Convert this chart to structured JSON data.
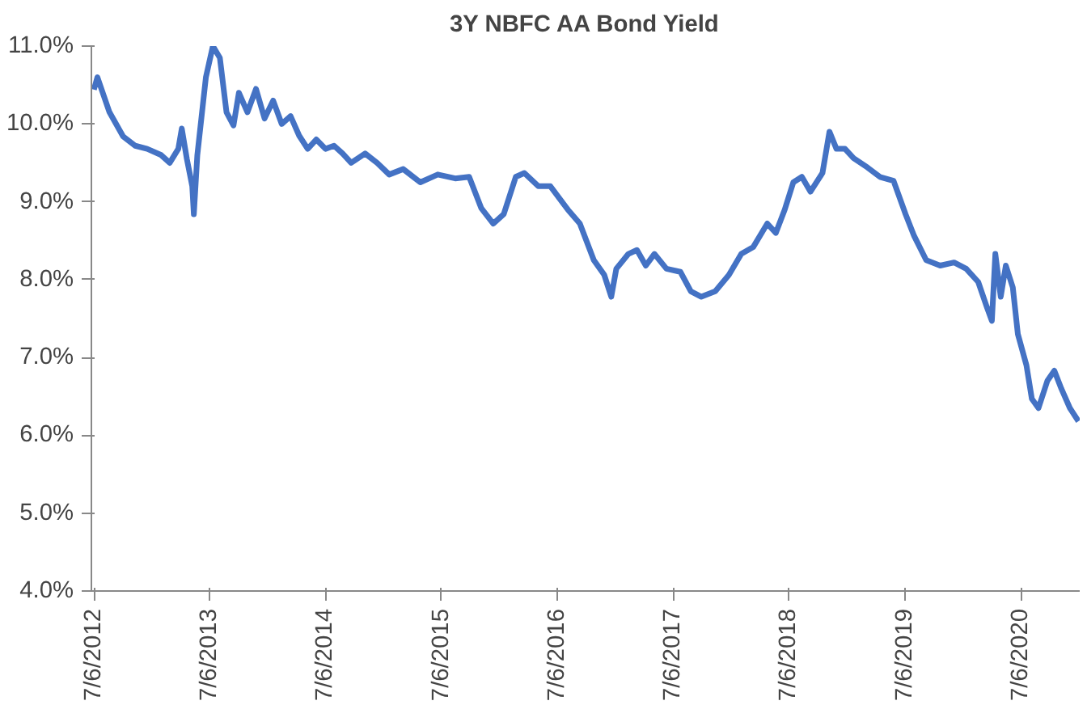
{
  "chart_data": {
    "type": "line",
    "title": "3Y NBFC AA Bond Yield",
    "x": [
      "2012-07-06",
      "2012-07-17",
      "2012-08-24",
      "2012-10-06",
      "2012-11-13",
      "2012-12-21",
      "2013-02-03",
      "2013-03-02",
      "2013-03-29",
      "2013-04-09",
      "2013-04-25",
      "2013-05-12",
      "2013-05-17",
      "2013-05-28",
      "2013-06-24",
      "2013-07-16",
      "2013-08-07",
      "2013-08-28",
      "2013-09-19",
      "2013-10-06",
      "2013-11-02",
      "2013-11-29",
      "2013-12-26",
      "2014-01-22",
      "2014-02-18",
      "2014-03-18",
      "2014-04-14",
      "2014-05-11",
      "2014-06-07",
      "2014-07-06",
      "2014-08-02",
      "2014-08-29",
      "2014-09-25",
      "2014-11-08",
      "2014-12-16",
      "2015-01-23",
      "2015-03-08",
      "2015-05-01",
      "2015-06-25",
      "2015-08-19",
      "2015-10-02",
      "2015-11-09",
      "2015-12-17",
      "2016-01-19",
      "2016-02-26",
      "2016-03-24",
      "2016-05-07",
      "2016-06-14",
      "2016-08-08",
      "2016-09-15",
      "2016-10-29",
      "2016-12-01",
      "2016-12-23",
      "2017-01-08",
      "2017-02-15",
      "2017-03-14",
      "2017-04-11",
      "2017-05-08",
      "2017-06-15",
      "2017-07-29",
      "2017-08-31",
      "2017-10-03",
      "2017-11-16",
      "2017-12-29",
      "2018-02-06",
      "2018-03-16",
      "2018-04-29",
      "2018-05-26",
      "2018-06-23",
      "2018-07-20",
      "2018-08-16",
      "2018-09-12",
      "2018-10-20",
      "2018-11-11",
      "2018-12-03",
      "2018-12-30",
      "2019-01-26",
      "2019-03-11",
      "2019-04-19",
      "2019-06-01",
      "2019-07-09",
      "2019-08-05",
      "2019-09-12",
      "2019-10-26",
      "2019-12-09",
      "2020-01-16",
      "2020-02-23",
      "2020-03-21",
      "2020-04-06",
      "2020-04-17",
      "2020-05-04",
      "2020-05-20",
      "2020-06-11",
      "2020-06-27",
      "2020-07-24",
      "2020-08-10",
      "2020-08-31",
      "2020-09-28",
      "2020-10-20",
      "2020-11-11",
      "2020-12-08",
      "2021-01-04"
    ],
    "series": [
      {
        "color": "#4472c4",
        "values": [
          10.44,
          10.6,
          10.15,
          9.84,
          9.72,
          9.68,
          9.6,
          9.5,
          9.68,
          9.94,
          9.55,
          9.2,
          8.84,
          9.6,
          10.6,
          11.0,
          10.85,
          10.15,
          9.98,
          10.4,
          10.15,
          10.45,
          10.07,
          10.3,
          10.0,
          10.1,
          9.85,
          9.68,
          9.8,
          9.68,
          9.72,
          9.62,
          9.5,
          9.62,
          9.5,
          9.35,
          9.42,
          9.25,
          9.35,
          9.3,
          9.32,
          8.92,
          8.72,
          8.84,
          9.32,
          9.37,
          9.2,
          9.2,
          8.9,
          8.72,
          8.25,
          8.06,
          7.78,
          8.14,
          8.33,
          8.38,
          8.18,
          8.33,
          8.14,
          8.1,
          7.85,
          7.78,
          7.85,
          8.06,
          8.33,
          8.42,
          8.72,
          8.6,
          8.9,
          9.25,
          9.32,
          9.13,
          9.37,
          9.9,
          9.68,
          9.68,
          9.56,
          9.44,
          9.32,
          9.27,
          8.84,
          8.56,
          8.25,
          8.18,
          8.22,
          8.14,
          7.97,
          7.65,
          7.47,
          8.33,
          7.78,
          8.18,
          7.9,
          7.3,
          6.9,
          6.47,
          6.35,
          6.7,
          6.83,
          6.6,
          6.35,
          6.18
        ]
      }
    ],
    "xlim": [
      "2012-06-28",
      "2021-01-08"
    ],
    "xticks": [
      {
        "value": "2012-07-06",
        "label": "7/6/2012"
      },
      {
        "value": "2013-07-06",
        "label": "7/6/2013"
      },
      {
        "value": "2014-07-06",
        "label": "7/6/2014"
      },
      {
        "value": "2015-07-06",
        "label": "7/6/2015"
      },
      {
        "value": "2016-07-06",
        "label": "7/6/2016"
      },
      {
        "value": "2017-07-06",
        "label": "7/6/2017"
      },
      {
        "value": "2018-07-06",
        "label": "7/6/2018"
      },
      {
        "value": "2019-07-06",
        "label": "7/6/2019"
      },
      {
        "value": "2020-07-06",
        "label": "7/6/2020"
      }
    ],
    "ylim": [
      4.0,
      11.0
    ],
    "yticks": [
      {
        "value": 4,
        "label": "4.0%"
      },
      {
        "value": 5,
        "label": "5.0%"
      },
      {
        "value": 6,
        "label": "6.0%"
      },
      {
        "value": 7,
        "label": "7.0%"
      },
      {
        "value": 8,
        "label": "8.0%"
      },
      {
        "value": 9,
        "label": "9.0%"
      },
      {
        "value": 10,
        "label": "10.0%"
      },
      {
        "value": 11,
        "label": "11.0%"
      }
    ]
  }
}
